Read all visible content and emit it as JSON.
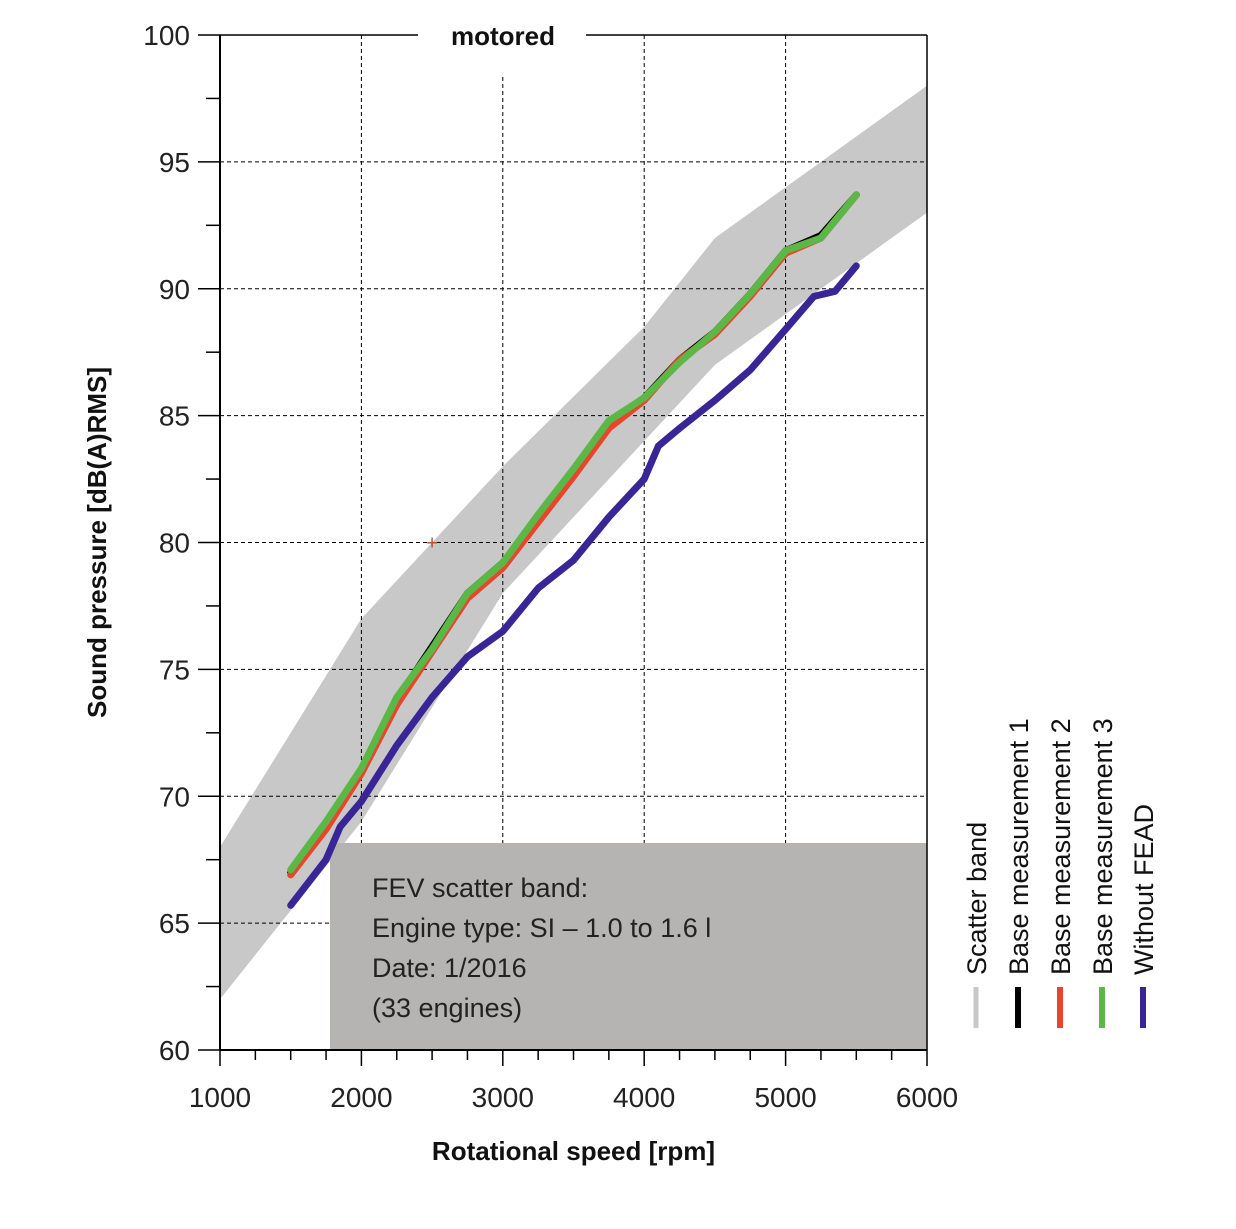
{
  "chart_data": {
    "type": "line",
    "title": "motored",
    "xlabel": "Rotational speed [rpm]",
    "ylabel": "Sound pressure [dB(A)RMS]",
    "xlim": [
      1000,
      6000
    ],
    "ylim": [
      60,
      100
    ],
    "xticks": [
      "1000",
      "2000",
      "3000",
      "4000",
      "5000",
      "6000"
    ],
    "yticks": [
      "60",
      "65",
      "70",
      "75",
      "80",
      "85",
      "90",
      "95",
      "100"
    ],
    "grid": true,
    "scatter_band": {
      "upper": [
        [
          1000,
          68
        ],
        [
          2000,
          77
        ],
        [
          3000,
          83
        ],
        [
          4000,
          88.5
        ],
        [
          4500,
          92
        ],
        [
          6000,
          98
        ]
      ],
      "lower": [
        [
          1000,
          62
        ],
        [
          2000,
          69
        ],
        [
          3000,
          78
        ],
        [
          4000,
          84
        ],
        [
          4500,
          87
        ],
        [
          6000,
          93
        ]
      ]
    },
    "series": [
      {
        "name": "Base measurement 1",
        "x": [
          1500,
          1750,
          2000,
          2250,
          2500,
          2750,
          3000,
          3250,
          3500,
          3750,
          4000,
          4250,
          4500,
          4750,
          5000,
          5250,
          5500
        ],
        "y": [
          67.0,
          68.8,
          71.0,
          73.8,
          75.9,
          78.0,
          79.2,
          81.0,
          82.8,
          84.7,
          85.7,
          87.2,
          88.3,
          89.8,
          91.5,
          92.1,
          93.7
        ]
      },
      {
        "name": "Base measurement 2",
        "x": [
          1500,
          1750,
          2000,
          2250,
          2500,
          2750,
          3000,
          3250,
          3500,
          3750,
          4000,
          4250,
          4500,
          4750,
          5000,
          5250,
          5500
        ],
        "y": [
          66.9,
          68.7,
          70.9,
          73.6,
          75.7,
          77.8,
          79.0,
          80.8,
          82.6,
          84.5,
          85.6,
          87.2,
          88.2,
          89.7,
          91.4,
          92.0,
          93.7
        ]
      },
      {
        "name": "Base measurement 3",
        "x": [
          1500,
          1750,
          2000,
          2250,
          2500,
          2750,
          3000,
          3250,
          3500,
          3750,
          4000,
          4250,
          4500,
          4750,
          5000,
          5250,
          5500
        ],
        "y": [
          67.1,
          69.0,
          71.1,
          73.9,
          75.8,
          78.0,
          79.2,
          81.1,
          82.9,
          84.8,
          85.7,
          87.1,
          88.3,
          89.8,
          91.5,
          92.0,
          93.7
        ]
      },
      {
        "name": "Without FEAD",
        "x": [
          1500,
          1750,
          1850,
          2000,
          2250,
          2500,
          2750,
          3000,
          3250,
          3500,
          3750,
          4000,
          4100,
          4250,
          4500,
          4750,
          5000,
          5200,
          5350,
          5500
        ],
        "y": [
          65.7,
          67.5,
          68.8,
          69.8,
          72.0,
          73.9,
          75.5,
          76.5,
          78.2,
          79.3,
          81.0,
          82.5,
          83.8,
          84.5,
          85.6,
          86.8,
          88.4,
          89.7,
          89.9,
          90.9
        ]
      }
    ],
    "legend": {
      "position": "right",
      "orientation": "vertical-text",
      "entries": [
        {
          "label": "Scatter band",
          "color": "#c8c8c8"
        },
        {
          "label": "Base measurement 1",
          "color": "#000000"
        },
        {
          "label": "Base measurement 2",
          "color": "#e8452c"
        },
        {
          "label": "Base measurement 3",
          "color": "#5cb846"
        },
        {
          "label": "Without FEAD",
          "color": "#3a2596"
        }
      ]
    },
    "annotation_box": {
      "lines": [
        "FEV scatter band:",
        "Engine type: SI – 1.0 to 1.6 l",
        "Date: 1/2016",
        "(33 engines)"
      ],
      "color": "#b6b3b3"
    },
    "marker": {
      "x": 2500,
      "y": 80,
      "symbol": "+",
      "color": "#b5542a"
    },
    "colors": {
      "band": "#c8c8c8",
      "base1": "#000000",
      "base2": "#e8452c",
      "base3": "#5cb846",
      "without_fead": "#3a2596"
    }
  }
}
